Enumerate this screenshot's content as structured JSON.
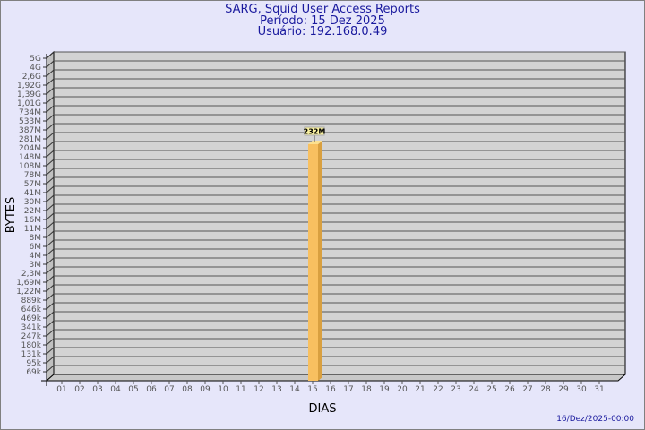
{
  "header": {
    "title": "SARG, Squid User Access Reports",
    "period": "Período: 15 Dez 2025",
    "user": "Usuário: 192.168.0.49"
  },
  "footer": {
    "timestamp": "16/Dez/2025-00:00"
  },
  "chart_data": {
    "type": "bar",
    "xlabel": "DIAS",
    "ylabel": "BYTES",
    "y_scale": "log",
    "y_ticks": [
      "5G",
      "4G",
      "2,6G",
      "1,92G",
      "1,39G",
      "1,01G",
      "734M",
      "533M",
      "387M",
      "281M",
      "204M",
      "148M",
      "108M",
      "78M",
      "57M",
      "41M",
      "30M",
      "22M",
      "16M",
      "11M",
      "8M",
      "6M",
      "4M",
      "3M",
      "2,3M",
      "1,69M",
      "1,22M",
      "889k",
      "646k",
      "469k",
      "341k",
      "247k",
      "180k",
      "131k",
      "95k",
      "69k"
    ],
    "categories": [
      "01",
      "02",
      "03",
      "04",
      "05",
      "06",
      "07",
      "08",
      "09",
      "10",
      "11",
      "12",
      "13",
      "14",
      "15",
      "16",
      "17",
      "18",
      "19",
      "20",
      "21",
      "22",
      "23",
      "24",
      "25",
      "26",
      "27",
      "28",
      "29",
      "30",
      "31"
    ],
    "bars": [
      {
        "day": "15",
        "value": 232000000,
        "label": "232M"
      }
    ],
    "grid": true,
    "colors": {
      "bar": "#f8c060",
      "bar_side": "#d9a040",
      "wall": "#d3d3d3",
      "background": "#e6e6fa",
      "title": "#1a1a9e"
    }
  }
}
